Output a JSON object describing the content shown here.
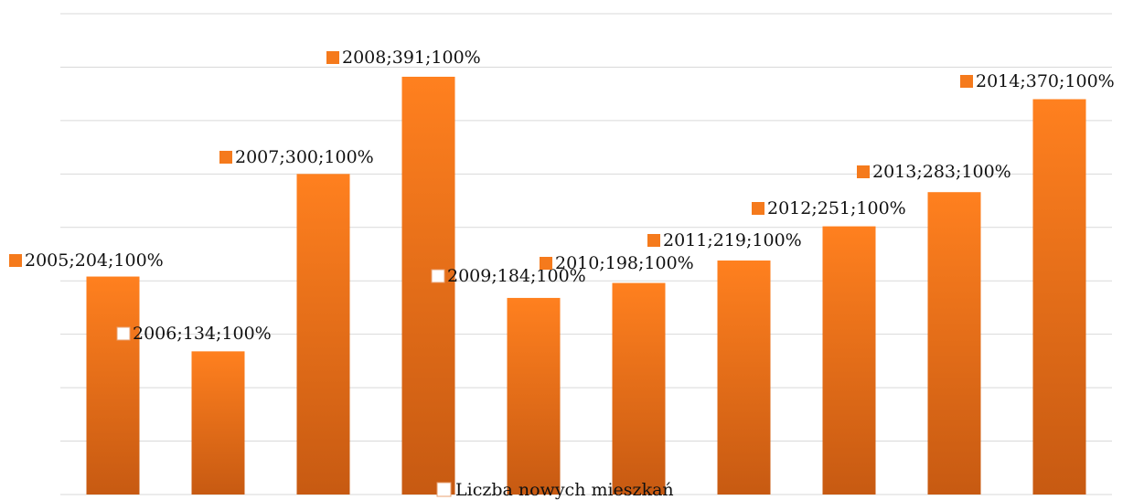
{
  "chart_data": {
    "type": "bar",
    "series": [
      {
        "name": "Liczba nowych mieszkań",
        "color": "#f57a1c",
        "values": [
          204,
          134,
          300,
          391,
          184,
          198,
          219,
          251,
          283,
          370
        ],
        "value_labels": [
          "2005;204;100%",
          "2006;134;100%",
          "2007;300;100%",
          "2008;391;100%",
          "2009;184;100%",
          "2010;198;100%",
          "2011;219;100%",
          "2012;251;100%",
          "2013;283;100%",
          "2014;370;100%"
        ]
      }
    ],
    "ylim": [
      0,
      450
    ],
    "yticks": [
      0,
      50,
      100,
      150,
      200,
      250,
      300,
      350,
      400,
      450
    ],
    "grid": true,
    "legend": "bottom"
  }
}
